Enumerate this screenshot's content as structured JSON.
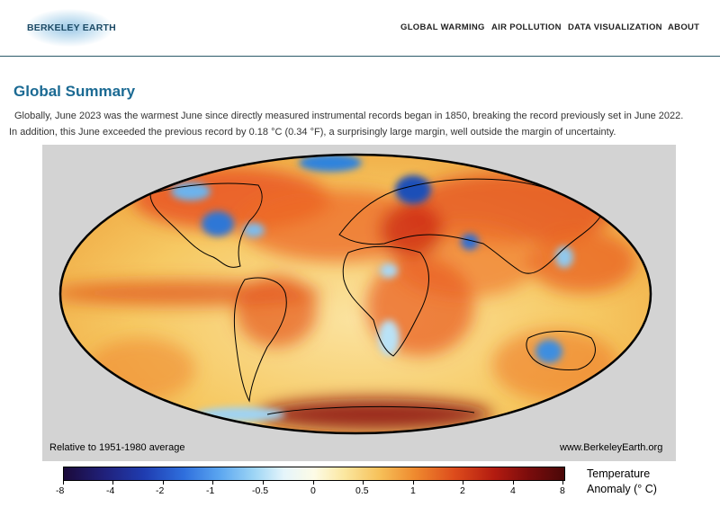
{
  "brand": {
    "logo_text": "BERKELEY EARTH"
  },
  "nav": {
    "items": [
      {
        "label": "GLOBAL WARMING"
      },
      {
        "label": "AIR POLLUTION"
      },
      {
        "label": "DATA VISUALIZATION"
      },
      {
        "label": "ABOUT"
      }
    ]
  },
  "main": {
    "title": "Global Summary",
    "intro_line1": "Globally, June 2023 was the warmest June since directly measured instrumental records began in 1850, breaking the record previously set in June 2022.",
    "intro_line2": "In addition, this June exceeded the previous record by 0.18 °C (0.34 °F), a surprisingly large margin, well outside the margin of uncertainty."
  },
  "map": {
    "baseline_note": "Relative to 1951-1980 average",
    "source_note": "www.BerkeleyEarth.org",
    "background_color": "#d3d3d3",
    "ocean_base_color": "#f6cf74"
  },
  "colorbar": {
    "title_line1": "Temperature",
    "title_line2": "Anomaly (° C)",
    "tick_labels": [
      "-8",
      "-4",
      "-2",
      "-1",
      "-0.5",
      "0",
      "0.5",
      "1",
      "2",
      "4",
      "8"
    ]
  }
}
